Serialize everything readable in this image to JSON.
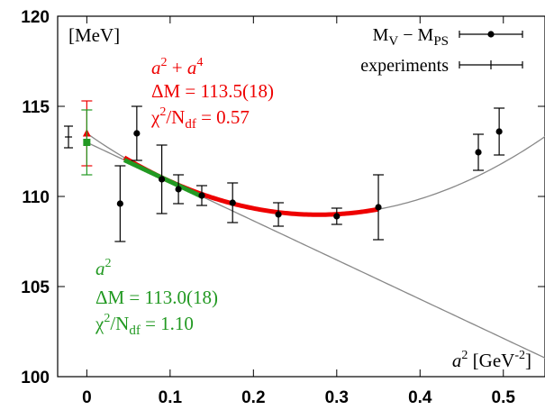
{
  "chart_data": {
    "type": "scatter",
    "xlim": [
      -0.035,
      0.55
    ],
    "ylim": [
      100,
      120
    ],
    "xticks": [
      "0",
      "0.1",
      "0.2",
      "0.3",
      "0.4",
      "0.5"
    ],
    "xtick_values": [
      0,
      0.1,
      0.2,
      0.3,
      0.4,
      0.5
    ],
    "yticks": [
      "100",
      "105",
      "110",
      "115",
      "120"
    ],
    "ytick_values": [
      100,
      105,
      110,
      115,
      120
    ],
    "grid": false,
    "legend_position": "top-right",
    "ylabel": "[MeV]",
    "xlabel": {
      "prefix": "a",
      "sup1": "2",
      "mid": " [GeV",
      "sup2": "-2",
      "suffix": "]"
    },
    "legend": [
      {
        "kind": "mv-mps",
        "text_main": "M",
        "sub1": "V",
        "middle": " − M",
        "sub2": "PS"
      },
      {
        "kind": "experiments",
        "text_main": "experiments"
      }
    ],
    "series": [
      {
        "name_parts": {
          "main": "M",
          "sub1": "V",
          "middle": " − M",
          "sub2": "PS"
        },
        "color": "#000000",
        "points": [
          {
            "x": 0.04,
            "y": 109.6,
            "err": 2.1
          },
          {
            "x": 0.06,
            "y": 113.5,
            "err": 1.5
          },
          {
            "x": 0.09,
            "y": 110.95,
            "err": 1.9
          },
          {
            "x": 0.11,
            "y": 110.4,
            "err": 0.8
          },
          {
            "x": 0.138,
            "y": 110.05,
            "err": 0.55
          },
          {
            "x": 0.175,
            "y": 109.65,
            "err": 1.1
          },
          {
            "x": 0.23,
            "y": 109.0,
            "err": 0.65
          },
          {
            "x": 0.3,
            "y": 108.9,
            "err": 0.45
          },
          {
            "x": 0.35,
            "y": 109.4,
            "err": 1.8
          },
          {
            "x": 0.47,
            "y": 112.45,
            "err": 1.0
          },
          {
            "x": 0.495,
            "y": 113.6,
            "err": 1.3
          }
        ]
      },
      {
        "name": "experiments",
        "color": "#000000",
        "points": [
          {
            "x": -0.022,
            "y": 113.3,
            "err": 0.6
          }
        ]
      }
    ],
    "fits": [
      {
        "kind": "a2+a4",
        "color": "#ee0000",
        "coeffs": [
          113.5,
          -32.5,
          58.5
        ],
        "fit_range": [
          0.045,
          0.35
        ],
        "extrapolated_range": [
          0.0,
          0.6
        ],
        "continuum": {
          "x": 0.0,
          "y": 113.5,
          "err": 1.8
        },
        "label_line1": {
          "a": "a",
          "two": "2",
          "plus": " + ",
          "a2": "a",
          "four": "4"
        },
        "label_line2": "ΔM = 113.5(18)",
        "label_line3": {
          "chi": "χ",
          "two": "2",
          "slash": "/N",
          "df": "df",
          "value": " = 0.57"
        }
      },
      {
        "kind": "a2",
        "color": "#229922",
        "coeffs": [
          113.0,
          -21.75
        ],
        "fit_range": [
          0.045,
          0.14
        ],
        "extrapolated_range": [
          0.0,
          0.6
        ],
        "continuum": {
          "x": 0.0,
          "y": 113.0,
          "err": 1.8
        },
        "label_line1": {
          "a": "a",
          "two": "2"
        },
        "label_line2": "ΔM = 113.0(18)",
        "label_line3": {
          "chi": "χ",
          "two": "2",
          "slash": "/N",
          "df": "df",
          "value": " = 1.10"
        }
      }
    ]
  }
}
